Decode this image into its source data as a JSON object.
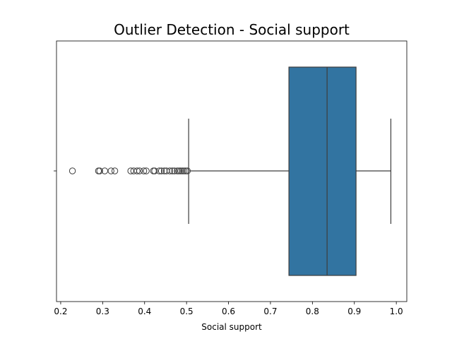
{
  "chart_data": {
    "type": "box",
    "title": "Outlier Detection - Social support",
    "xlabel": "Social support",
    "ylabel": "",
    "xlim": [
      0.19,
      1.025
    ],
    "xticks": [
      0.2,
      0.3,
      0.4,
      0.5,
      0.6,
      0.7,
      0.8,
      0.9,
      1.0
    ],
    "xtick_labels": [
      "0.2",
      "0.3",
      "0.4",
      "0.5",
      "0.6",
      "0.7",
      "0.8",
      "0.9",
      "1.0"
    ],
    "grid": false,
    "box": {
      "q1": 0.744,
      "median": 0.835,
      "q3": 0.904,
      "whisker_low": 0.505,
      "whisker_high": 0.987,
      "color": "#3274a1"
    },
    "outliers": [
      0.228,
      0.29,
      0.293,
      0.305,
      0.32,
      0.329,
      0.367,
      0.374,
      0.382,
      0.388,
      0.398,
      0.404,
      0.421,
      0.424,
      0.435,
      0.44,
      0.447,
      0.452,
      0.46,
      0.466,
      0.471,
      0.478,
      0.482,
      0.486,
      0.49,
      0.494,
      0.498,
      0.502
    ]
  }
}
